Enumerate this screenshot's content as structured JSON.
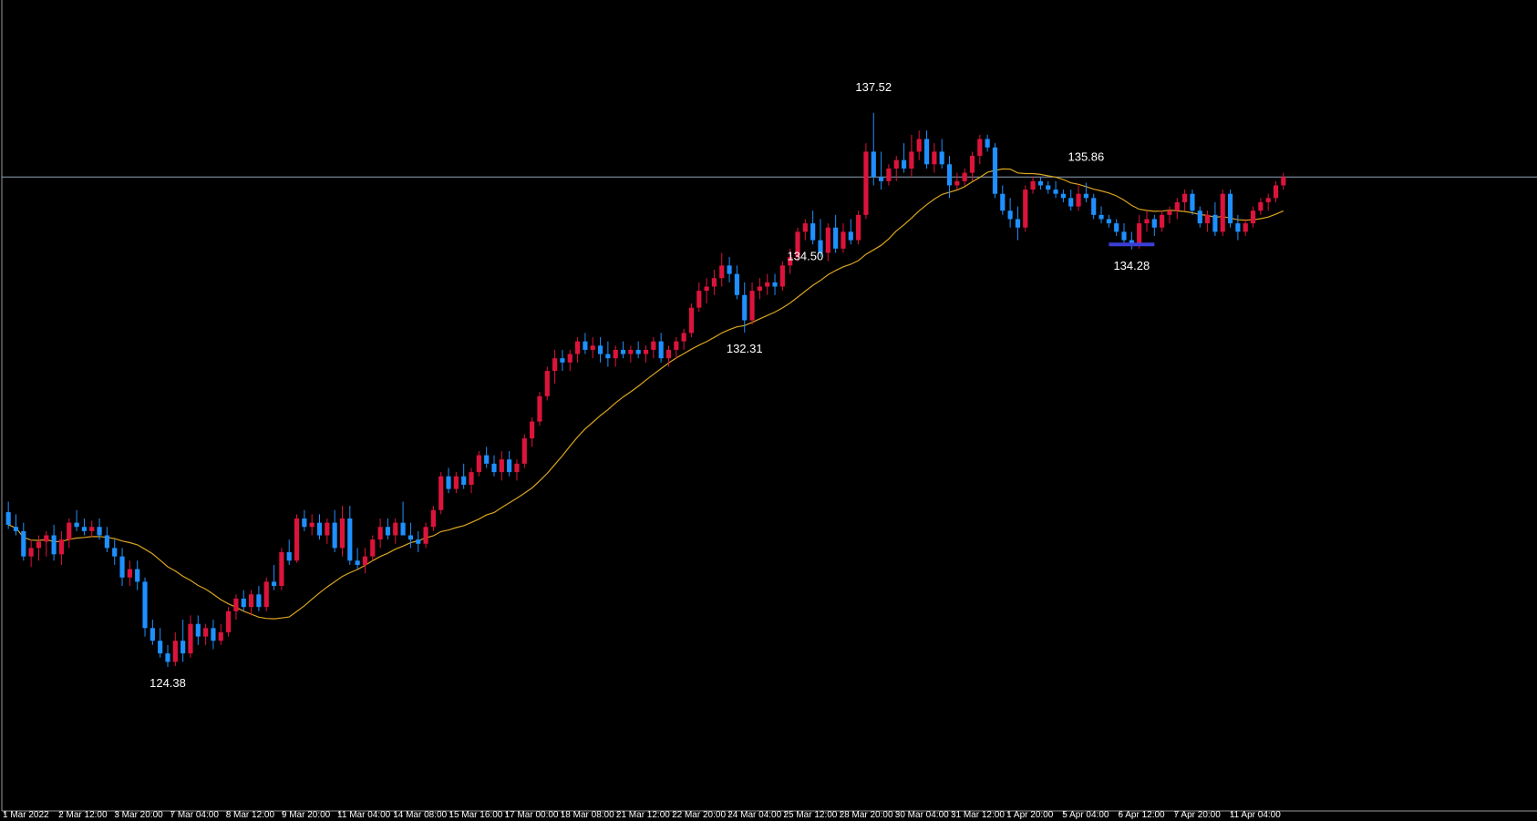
{
  "colors": {
    "background": "#000000",
    "bull": "#dc143c",
    "bear": "#1e90ff",
    "ma": "#daa520",
    "hline": "#8fa3b8",
    "support": "#3b3fd6",
    "text": "#ffffff"
  },
  "chart_data": {
    "type": "candlestick",
    "ylim": [
      122.8,
      138.9
    ],
    "current_price_line": 136.0,
    "x_tick_labels": [
      "1 Mar 2022",
      "2 Mar 12:00",
      "3 Mar 20:00",
      "7 Mar 04:00",
      "8 Mar 12:00",
      "9 Mar 20:00",
      "11 Mar 04:00",
      "14 Mar 08:00",
      "15 Mar 16:00",
      "17 Mar 00:00",
      "18 Mar 08:00",
      "21 Mar 12:00",
      "22 Mar 20:00",
      "24 Mar 04:00",
      "25 Mar 12:00",
      "28 Mar 20:00",
      "30 Mar 04:00",
      "31 Mar 12:00",
      "1 Apr 20:00",
      "5 Apr 04:00",
      "6 Apr 12:00",
      "7 Apr 20:00",
      "11 Apr 04:00"
    ],
    "annotations": [
      {
        "text": "137.52",
        "value": 137.52
      },
      {
        "text": "135.86",
        "value": 135.86
      },
      {
        "text": "134.50",
        "value": 134.5
      },
      {
        "text": "134.28",
        "value": 134.28
      },
      {
        "text": "132.31",
        "value": 132.31
      },
      {
        "text": "124.38",
        "value": 124.38
      }
    ],
    "support_level": 134.4,
    "ohlc": [
      [
        128.05,
        128.3,
        127.65,
        127.75
      ],
      [
        127.7,
        128.0,
        127.5,
        127.6
      ],
      [
        127.6,
        127.8,
        126.9,
        127.0
      ],
      [
        127.0,
        127.4,
        126.75,
        127.2
      ],
      [
        127.2,
        127.5,
        126.9,
        127.35
      ],
      [
        127.35,
        127.6,
        127.0,
        127.5
      ],
      [
        127.5,
        127.75,
        126.9,
        127.05
      ],
      [
        127.05,
        127.6,
        126.8,
        127.4
      ],
      [
        127.4,
        127.9,
        127.2,
        127.8
      ],
      [
        127.8,
        128.1,
        127.6,
        127.7
      ],
      [
        127.7,
        127.9,
        127.5,
        127.6
      ],
      [
        127.6,
        127.85,
        127.45,
        127.7
      ],
      [
        127.7,
        127.9,
        127.4,
        127.5
      ],
      [
        127.5,
        127.7,
        127.1,
        127.2
      ],
      [
        127.2,
        127.4,
        126.8,
        127.0
      ],
      [
        127.0,
        127.2,
        126.3,
        126.5
      ],
      [
        126.5,
        126.9,
        126.3,
        126.7
      ],
      [
        126.7,
        126.9,
        126.2,
        126.4
      ],
      [
        126.4,
        126.5,
        125.1,
        125.3
      ],
      [
        125.3,
        125.5,
        124.9,
        125.0
      ],
      [
        125.0,
        125.3,
        124.6,
        124.7
      ],
      [
        124.7,
        124.9,
        124.38,
        124.5
      ],
      [
        124.5,
        125.2,
        124.4,
        125.0
      ],
      [
        125.0,
        125.5,
        124.5,
        124.7
      ],
      [
        124.7,
        125.6,
        124.6,
        125.4
      ],
      [
        125.4,
        125.6,
        124.9,
        125.1
      ],
      [
        125.1,
        125.4,
        124.9,
        125.3
      ],
      [
        125.3,
        125.5,
        124.8,
        125.0
      ],
      [
        125.0,
        125.4,
        124.9,
        125.2
      ],
      [
        125.2,
        125.8,
        125.1,
        125.7
      ],
      [
        125.7,
        126.1,
        125.5,
        126.0
      ],
      [
        126.0,
        126.2,
        125.7,
        125.8
      ],
      [
        125.8,
        126.2,
        125.6,
        126.1
      ],
      [
        126.1,
        126.3,
        125.7,
        125.8
      ],
      [
        125.8,
        126.5,
        125.7,
        126.4
      ],
      [
        126.4,
        126.8,
        126.2,
        126.3
      ],
      [
        126.3,
        127.2,
        126.2,
        127.1
      ],
      [
        127.1,
        127.4,
        126.8,
        126.9
      ],
      [
        126.9,
        128.0,
        126.85,
        127.9
      ],
      [
        127.9,
        128.1,
        127.6,
        127.7
      ],
      [
        127.7,
        128.0,
        127.5,
        127.8
      ],
      [
        127.8,
        128.0,
        127.4,
        127.5
      ],
      [
        127.5,
        127.9,
        127.3,
        127.8
      ],
      [
        127.8,
        128.1,
        127.1,
        127.2
      ],
      [
        127.2,
        128.2,
        127.0,
        127.9
      ],
      [
        127.9,
        128.2,
        126.8,
        126.9
      ],
      [
        126.9,
        127.2,
        126.7,
        126.8
      ],
      [
        126.8,
        127.2,
        126.6,
        127.0
      ],
      [
        127.0,
        127.5,
        126.9,
        127.4
      ],
      [
        127.4,
        127.9,
        127.2,
        127.7
      ],
      [
        127.7,
        127.9,
        127.4,
        127.5
      ],
      [
        127.5,
        127.9,
        127.3,
        127.8
      ],
      [
        127.8,
        128.3,
        127.6,
        127.5
      ],
      [
        127.5,
        127.8,
        127.2,
        127.4
      ],
      [
        127.4,
        127.6,
        127.1,
        127.3
      ],
      [
        127.3,
        127.8,
        127.2,
        127.7
      ],
      [
        127.7,
        128.2,
        127.6,
        128.1
      ],
      [
        128.1,
        129.0,
        128.0,
        128.9
      ],
      [
        128.9,
        129.1,
        128.5,
        128.6
      ],
      [
        128.6,
        129.0,
        128.5,
        128.9
      ],
      [
        128.9,
        129.2,
        128.6,
        128.7
      ],
      [
        128.7,
        129.1,
        128.5,
        129.0
      ],
      [
        129.0,
        129.5,
        128.9,
        129.4
      ],
      [
        129.4,
        129.6,
        129.1,
        129.2
      ],
      [
        129.2,
        129.4,
        128.9,
        129.0
      ],
      [
        129.0,
        129.5,
        128.8,
        129.3
      ],
      [
        129.3,
        129.5,
        128.9,
        129.0
      ],
      [
        129.0,
        129.3,
        128.8,
        129.2
      ],
      [
        129.2,
        129.9,
        129.1,
        129.8
      ],
      [
        129.8,
        130.3,
        129.6,
        130.2
      ],
      [
        130.2,
        130.9,
        130.1,
        130.8
      ],
      [
        130.8,
        131.5,
        130.7,
        131.4
      ],
      [
        131.4,
        131.9,
        131.1,
        131.7
      ],
      [
        131.7,
        131.9,
        131.4,
        131.6
      ],
      [
        131.6,
        131.9,
        131.4,
        131.8
      ],
      [
        131.8,
        132.2,
        131.6,
        132.1
      ],
      [
        132.1,
        132.3,
        131.8,
        131.9
      ],
      [
        131.9,
        132.2,
        131.7,
        132.0
      ],
      [
        132.0,
        132.2,
        131.6,
        131.8
      ],
      [
        131.8,
        132.1,
        131.5,
        131.7
      ],
      [
        131.7,
        132.0,
        131.5,
        131.9
      ],
      [
        131.9,
        132.1,
        131.7,
        131.8
      ],
      [
        131.8,
        132.0,
        131.6,
        131.9
      ],
      [
        131.9,
        132.1,
        131.7,
        131.8
      ],
      [
        131.8,
        132.0,
        131.6,
        131.9
      ],
      [
        131.9,
        132.2,
        131.7,
        132.1
      ],
      [
        132.1,
        132.3,
        131.6,
        131.7
      ],
      [
        131.7,
        132.0,
        131.5,
        131.9
      ],
      [
        131.9,
        132.2,
        131.7,
        132.1
      ],
      [
        132.1,
        132.4,
        131.9,
        132.3
      ],
      [
        132.3,
        133.0,
        132.2,
        132.9
      ],
      [
        132.9,
        133.5,
        132.8,
        133.3
      ],
      [
        133.3,
        133.6,
        133.0,
        133.4
      ],
      [
        133.4,
        133.8,
        133.2,
        133.6
      ],
      [
        133.6,
        134.2,
        133.4,
        133.9
      ],
      [
        133.9,
        134.1,
        133.5,
        133.7
      ],
      [
        133.7,
        133.9,
        133.1,
        133.2
      ],
      [
        133.2,
        133.5,
        132.31,
        132.6
      ],
      [
        132.6,
        133.5,
        132.5,
        133.3
      ],
      [
        133.3,
        133.6,
        133.1,
        133.4
      ],
      [
        133.4,
        133.7,
        133.2,
        133.5
      ],
      [
        133.5,
        133.7,
        133.2,
        133.4
      ],
      [
        133.4,
        134.0,
        133.3,
        133.9
      ],
      [
        133.9,
        134.3,
        133.7,
        134.1
      ],
      [
        134.1,
        134.8,
        134.0,
        134.7
      ],
      [
        134.7,
        135.0,
        134.5,
        134.9
      ],
      [
        134.9,
        135.2,
        134.4,
        134.5
      ],
      [
        134.5,
        135.0,
        134.1,
        134.2
      ],
      [
        134.2,
        134.9,
        134.0,
        134.8
      ],
      [
        134.8,
        135.1,
        134.2,
        134.3
      ],
      [
        134.3,
        134.9,
        134.2,
        134.7
      ],
      [
        134.7,
        135.0,
        134.4,
        134.5
      ],
      [
        134.5,
        135.2,
        134.4,
        135.1
      ],
      [
        135.1,
        136.8,
        135.0,
        136.6
      ],
      [
        136.6,
        137.52,
        135.8,
        136.0
      ],
      [
        136.0,
        136.6,
        135.7,
        135.9
      ],
      [
        135.9,
        136.3,
        135.8,
        136.2
      ],
      [
        136.2,
        136.5,
        135.9,
        136.4
      ],
      [
        136.4,
        136.8,
        136.1,
        136.2
      ],
      [
        136.2,
        137.0,
        136.0,
        136.6
      ],
      [
        136.6,
        137.1,
        136.4,
        136.9
      ],
      [
        136.9,
        137.1,
        136.2,
        136.3
      ],
      [
        136.3,
        136.8,
        136.1,
        136.6
      ],
      [
        136.6,
        136.9,
        136.2,
        136.3
      ],
      [
        136.3,
        136.5,
        135.5,
        135.8
      ],
      [
        135.8,
        136.1,
        135.7,
        135.9
      ],
      [
        135.9,
        136.2,
        135.8,
        136.1
      ],
      [
        136.1,
        136.6,
        135.9,
        136.5
      ],
      [
        136.5,
        137.0,
        136.3,
        136.9
      ],
      [
        136.9,
        137.0,
        136.6,
        136.7
      ],
      [
        136.7,
        136.8,
        135.5,
        135.6
      ],
      [
        135.6,
        135.8,
        135.1,
        135.2
      ],
      [
        135.2,
        135.5,
        134.8,
        135.0
      ],
      [
        135.0,
        135.3,
        134.5,
        134.8
      ],
      [
        134.8,
        135.8,
        134.7,
        135.7
      ],
      [
        135.7,
        136.0,
        135.6,
        135.9
      ],
      [
        135.9,
        136.0,
        135.7,
        135.8
      ],
      [
        135.8,
        135.9,
        135.6,
        135.7
      ],
      [
        135.7,
        135.9,
        135.5,
        135.6
      ],
      [
        135.6,
        135.7,
        135.4,
        135.5
      ],
      [
        135.5,
        135.7,
        135.2,
        135.3
      ],
      [
        135.3,
        135.8,
        135.2,
        135.6
      ],
      [
        135.6,
        135.86,
        135.4,
        135.5
      ],
      [
        135.5,
        135.6,
        135.0,
        135.1
      ],
      [
        135.1,
        135.3,
        134.9,
        135.0
      ],
      [
        135.0,
        135.1,
        134.8,
        134.9
      ],
      [
        134.9,
        135.0,
        134.6,
        134.7
      ],
      [
        134.7,
        134.9,
        134.4,
        134.5
      ],
      [
        134.5,
        134.7,
        134.28,
        134.4
      ],
      [
        134.4,
        135.1,
        134.3,
        134.9
      ],
      [
        134.9,
        135.2,
        134.7,
        135.0
      ],
      [
        135.0,
        135.1,
        134.6,
        134.8
      ],
      [
        134.8,
        135.2,
        134.7,
        135.1
      ],
      [
        135.1,
        135.3,
        134.9,
        135.2
      ],
      [
        135.2,
        135.5,
        135.0,
        135.4
      ],
      [
        135.4,
        135.7,
        135.2,
        135.6
      ],
      [
        135.6,
        135.7,
        135.1,
        135.2
      ],
      [
        135.2,
        135.3,
        134.8,
        134.9
      ],
      [
        134.9,
        135.2,
        134.7,
        135.1
      ],
      [
        135.1,
        135.4,
        134.6,
        134.7
      ],
      [
        134.7,
        135.7,
        134.6,
        135.6
      ],
      [
        135.6,
        135.7,
        134.8,
        134.9
      ],
      [
        134.9,
        135.1,
        134.5,
        134.7
      ],
      [
        134.7,
        135.0,
        134.6,
        134.9
      ],
      [
        134.9,
        135.3,
        134.8,
        135.2
      ],
      [
        135.2,
        135.5,
        135.1,
        135.4
      ],
      [
        135.4,
        135.6,
        135.2,
        135.5
      ],
      [
        135.5,
        135.9,
        135.4,
        135.8
      ],
      [
        135.8,
        136.1,
        135.7,
        136.0
      ]
    ]
  }
}
